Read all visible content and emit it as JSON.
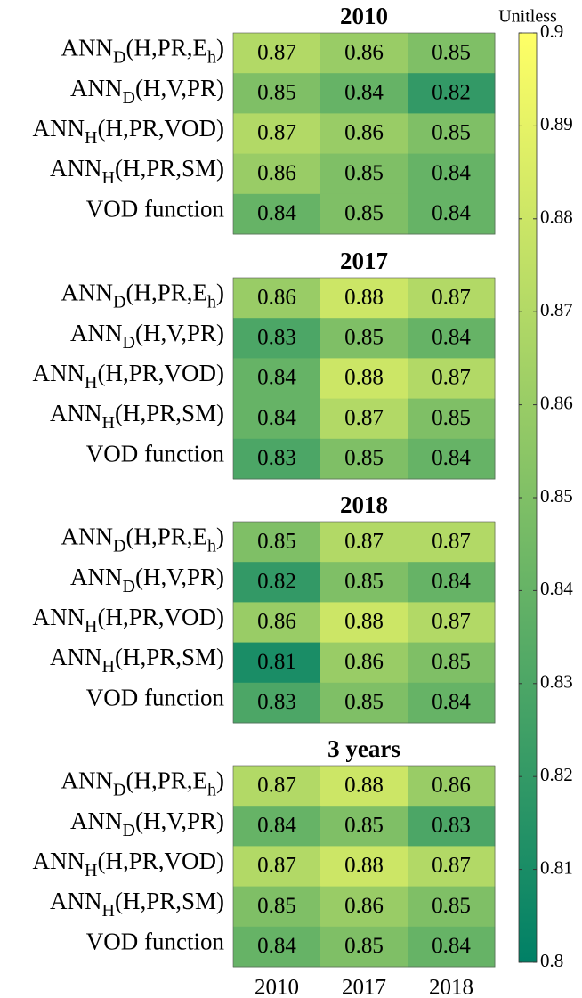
{
  "chart_data": [
    {
      "type": "heatmap",
      "title": "2010",
      "rows": [
        [
          "ANN",
          "D",
          "(H,PR,E",
          "h",
          ")"
        ],
        [
          "ANN",
          "D",
          "(H,V,PR)"
        ],
        [
          "ANN",
          "H",
          "(H,PR,VOD)"
        ],
        [
          "ANN",
          "H",
          "(H,PR,SM)"
        ],
        [
          "VOD function"
        ]
      ],
      "values": [
        [
          0.87,
          0.86,
          0.85
        ],
        [
          0.85,
          0.84,
          0.82
        ],
        [
          0.87,
          0.86,
          0.85
        ],
        [
          0.86,
          0.85,
          0.84
        ],
        [
          0.84,
          0.85,
          0.84
        ]
      ]
    },
    {
      "type": "heatmap",
      "title": "2017",
      "rows": [
        [
          "ANN",
          "D",
          "(H,PR,E",
          "h",
          ")"
        ],
        [
          "ANN",
          "D",
          "(H,V,PR)"
        ],
        [
          "ANN",
          "H",
          "(H,PR,VOD)"
        ],
        [
          "ANN",
          "H",
          "(H,PR,SM)"
        ],
        [
          "VOD function"
        ]
      ],
      "values": [
        [
          0.86,
          0.88,
          0.87
        ],
        [
          0.83,
          0.85,
          0.84
        ],
        [
          0.84,
          0.88,
          0.87
        ],
        [
          0.84,
          0.87,
          0.85
        ],
        [
          0.83,
          0.85,
          0.84
        ]
      ]
    },
    {
      "type": "heatmap",
      "title": "2018",
      "rows": [
        [
          "ANN",
          "D",
          "(H,PR,E",
          "h",
          ")"
        ],
        [
          "ANN",
          "D",
          "(H,V,PR)"
        ],
        [
          "ANN",
          "H",
          "(H,PR,VOD)"
        ],
        [
          "ANN",
          "H",
          "(H,PR,SM)"
        ],
        [
          "VOD function"
        ]
      ],
      "values": [
        [
          0.85,
          0.87,
          0.87
        ],
        [
          0.82,
          0.85,
          0.84
        ],
        [
          0.86,
          0.88,
          0.87
        ],
        [
          0.81,
          0.86,
          0.85
        ],
        [
          0.83,
          0.85,
          0.84
        ]
      ]
    },
    {
      "type": "heatmap",
      "title": "3 years",
      "rows": [
        [
          "ANN",
          "D",
          "(H,PR,E",
          "h",
          ")"
        ],
        [
          "ANN",
          "D",
          "(H,V,PR)"
        ],
        [
          "ANN",
          "H",
          "(H,PR,VOD)"
        ],
        [
          "ANN",
          "H",
          "(H,PR,SM)"
        ],
        [
          "VOD function"
        ]
      ],
      "columns": [
        "2010",
        "2017",
        "2018"
      ],
      "values": [
        [
          0.87,
          0.88,
          0.86
        ],
        [
          0.84,
          0.85,
          0.83
        ],
        [
          0.87,
          0.88,
          0.87
        ],
        [
          0.85,
          0.86,
          0.85
        ],
        [
          0.84,
          0.85,
          0.84
        ]
      ]
    },
    {
      "type": "colorbar",
      "label": "Unitless",
      "zlim": [
        0.8,
        0.9
      ],
      "zticks": [
        0.8,
        0.81,
        0.82,
        0.83,
        0.84,
        0.85,
        0.86,
        0.87,
        0.88,
        0.89,
        0.9
      ],
      "colors": [
        "#008066",
        "#ffff66"
      ]
    }
  ]
}
